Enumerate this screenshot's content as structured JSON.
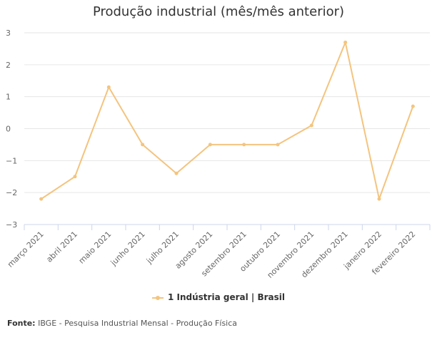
{
  "chart_data": {
    "type": "line",
    "title": "Produção industrial (mês/mês anterior)",
    "categories": [
      "março 2021",
      "abril 2021",
      "maio 2021",
      "junho 2021",
      "julho 2021",
      "agosto 2021",
      "setembro 2021",
      "outubro 2021",
      "novembro 2021",
      "dezembro 2021",
      "janeiro 2022",
      "fevereiro 2022"
    ],
    "series": [
      {
        "name": "1 Indústria geral | Brasil",
        "values": [
          -2.2,
          -1.5,
          1.3,
          -0.5,
          -1.4,
          -0.5,
          -0.5,
          -0.5,
          0.1,
          2.7,
          -2.2,
          0.7
        ]
      }
    ],
    "ylim": [
      -3,
      3
    ],
    "yticks": [
      "3",
      "2",
      "1",
      "0",
      "−1",
      "−2",
      "−3"
    ],
    "ytick_values": [
      3,
      2,
      1,
      0,
      -1,
      -2,
      -3
    ],
    "grid": true,
    "legend_position": "bottom-center",
    "line_color": "#f4c47e"
  },
  "source": {
    "label": "Fonte:",
    "text": "IBGE - Pesquisa Industrial Mensal - Produção Física"
  }
}
